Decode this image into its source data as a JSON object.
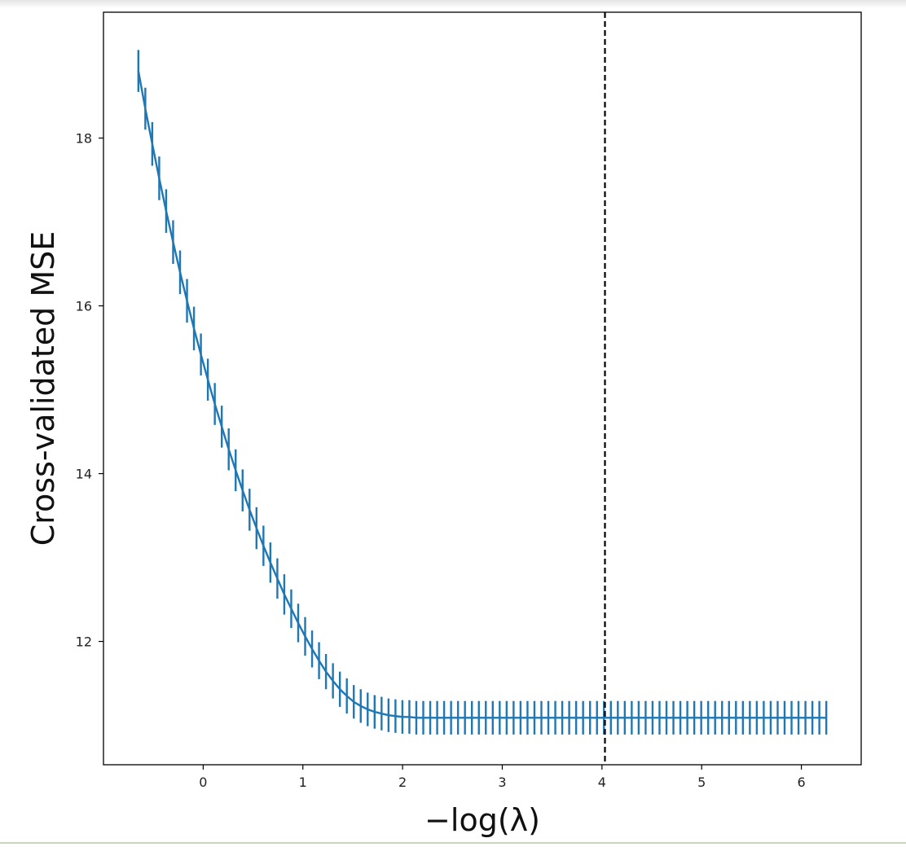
{
  "chart_data": {
    "type": "line",
    "xlabel": "−log(λ)",
    "ylabel": "Cross-validated MSE",
    "xlim": [
      -1.0,
      6.6
    ],
    "ylim": [
      10.53,
      19.5
    ],
    "x_ticks": [
      0,
      1,
      2,
      3,
      4,
      5,
      6
    ],
    "y_ticks": [
      12,
      14,
      16,
      18
    ],
    "grid": false,
    "legend": "none",
    "line_color": "#1f77b4",
    "vline": {
      "x": 4.03,
      "style": "dashed",
      "color": "#000000"
    },
    "series": [
      {
        "x_start": -0.65,
        "x_end": 6.25,
        "n_points": 100,
        "values": [
          18.8,
          18.35,
          17.93,
          17.52,
          17.13,
          16.76,
          16.4,
          16.06,
          15.73,
          15.42,
          15.12,
          14.83,
          14.56,
          14.29,
          14.04,
          13.8,
          13.57,
          13.35,
          13.14,
          12.94,
          12.75,
          12.56,
          12.39,
          12.22,
          12.06,
          11.91,
          11.77,
          11.64,
          11.53,
          11.43,
          11.35,
          11.28,
          11.23,
          11.19,
          11.16,
          11.14,
          11.12,
          11.11,
          11.1,
          11.1,
          11.09,
          11.09,
          11.09,
          11.09,
          11.09,
          11.09,
          11.09,
          11.09,
          11.09,
          11.09,
          11.09,
          11.09,
          11.09,
          11.09,
          11.09,
          11.09,
          11.09,
          11.09,
          11.09,
          11.09,
          11.09,
          11.09,
          11.09,
          11.09,
          11.09,
          11.09,
          11.09,
          11.09,
          11.09,
          11.09,
          11.09,
          11.09,
          11.09,
          11.09,
          11.09,
          11.09,
          11.09,
          11.09,
          11.09,
          11.09,
          11.09,
          11.09,
          11.09,
          11.09,
          11.09,
          11.09,
          11.09,
          11.09,
          11.09,
          11.09,
          11.09,
          11.09,
          11.09,
          11.09,
          11.09,
          11.09,
          11.09,
          11.09,
          11.09,
          11.09
        ],
        "errors": [
          0.25,
          0.25,
          0.26,
          0.26,
          0.26,
          0.26,
          0.26,
          0.26,
          0.26,
          0.25,
          0.25,
          0.25,
          0.25,
          0.25,
          0.25,
          0.25,
          0.25,
          0.25,
          0.24,
          0.24,
          0.24,
          0.24,
          0.23,
          0.23,
          0.23,
          0.22,
          0.22,
          0.21,
          0.21,
          0.21,
          0.21,
          0.2,
          0.2,
          0.2,
          0.2,
          0.2,
          0.2,
          0.2,
          0.2,
          0.2,
          0.2,
          0.2,
          0.2,
          0.2,
          0.2,
          0.2,
          0.2,
          0.2,
          0.2,
          0.2,
          0.2,
          0.2,
          0.2,
          0.2,
          0.2,
          0.2,
          0.2,
          0.2,
          0.2,
          0.2,
          0.2,
          0.2,
          0.2,
          0.2,
          0.2,
          0.2,
          0.2,
          0.2,
          0.2,
          0.2,
          0.2,
          0.2,
          0.2,
          0.2,
          0.2,
          0.2,
          0.2,
          0.2,
          0.2,
          0.2,
          0.2,
          0.2,
          0.2,
          0.2,
          0.2,
          0.2,
          0.2,
          0.2,
          0.2,
          0.2,
          0.2,
          0.2,
          0.2,
          0.2,
          0.2,
          0.2,
          0.2,
          0.2,
          0.2,
          0.2
        ]
      }
    ]
  }
}
